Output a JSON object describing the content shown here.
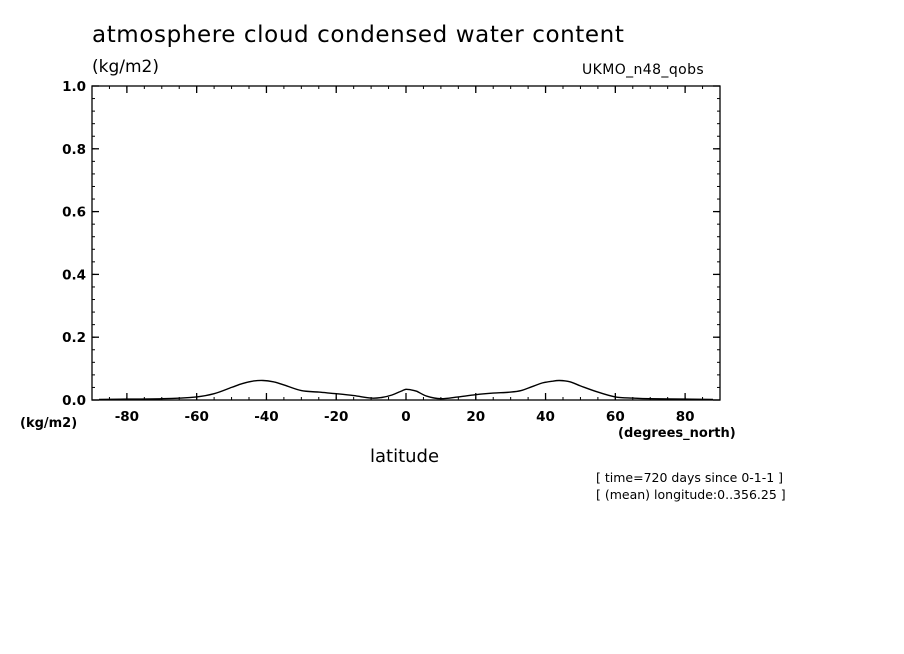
{
  "chart_data": {
    "type": "line",
    "title": "atmosphere cloud condensed water content",
    "units_label": "(kg/m2)",
    "ylabel_units": "(kg/m2)",
    "source_label": "UKMO_n48_qobs",
    "xlabel": "latitude",
    "xunits": "(degrees_north)",
    "annotations": [
      "[ time=720 days since 0-1-1 ]",
      "[ (mean) longitude:0..356.25 ]"
    ],
    "xlim": [
      -90,
      90
    ],
    "ylim": [
      0.0,
      1.0
    ],
    "xticks": [
      -80,
      -60,
      -40,
      -20,
      0,
      20,
      40,
      60,
      80
    ],
    "xtick_labels": [
      "-80",
      "-60",
      "-40",
      "-20",
      "0",
      "20",
      "40",
      "60",
      "80"
    ],
    "yticks": [
      0.0,
      0.2,
      0.4,
      0.6,
      0.8,
      1.0
    ],
    "ytick_labels": [
      "0.0",
      "0.2",
      "0.4",
      "0.6",
      "0.8",
      "1.0"
    ],
    "grid": false,
    "series": [
      {
        "name": "UKMO_n48_qobs",
        "x": [
          -88,
          -80,
          -70,
          -60,
          -55,
          -50,
          -47,
          -44,
          -41,
          -38,
          -35,
          -30,
          -25,
          -20,
          -15,
          -10,
          -7,
          -4,
          -1,
          0,
          1,
          3,
          6,
          10,
          15,
          20,
          25,
          30,
          33,
          36,
          39,
          42,
          44,
          47,
          50,
          55,
          60,
          65,
          70,
          80,
          88
        ],
        "y": [
          0.002,
          0.003,
          0.004,
          0.01,
          0.02,
          0.04,
          0.052,
          0.06,
          0.062,
          0.058,
          0.048,
          0.03,
          0.025,
          0.02,
          0.014,
          0.006,
          0.008,
          0.016,
          0.03,
          0.034,
          0.033,
          0.028,
          0.012,
          0.004,
          0.01,
          0.017,
          0.022,
          0.025,
          0.03,
          0.042,
          0.054,
          0.06,
          0.062,
          0.058,
          0.045,
          0.025,
          0.01,
          0.006,
          0.004,
          0.003,
          0.002
        ]
      }
    ]
  }
}
